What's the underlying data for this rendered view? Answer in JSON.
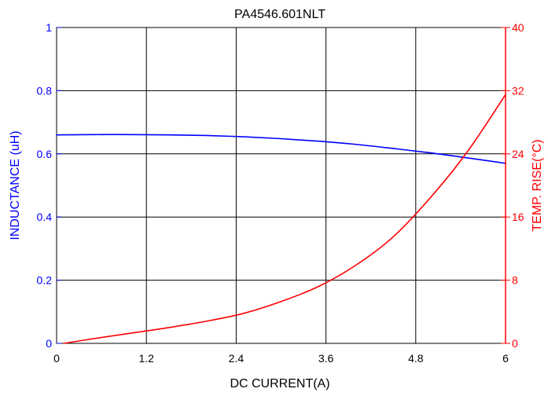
{
  "chart_data": {
    "type": "line",
    "title": "PA4546.601NLT",
    "xlabel": "DC CURRENT(A)",
    "ylabel_left": "INDUCTANCE (uH)",
    "ylabel_right": "TEMP. RISE(°C)",
    "x_ticks": [
      "0",
      "1.2",
      "2.4",
      "3.6",
      "4.8",
      "6"
    ],
    "y_left_ticks": [
      "0",
      "0.2",
      "0.4",
      "0.6",
      "0.8",
      "1"
    ],
    "y_right_ticks": [
      "0",
      "8",
      "16",
      "24",
      "32",
      "40"
    ],
    "xlim": [
      0,
      6
    ],
    "ylim_left": [
      0,
      1
    ],
    "ylim_right": [
      0,
      40
    ],
    "grid": true,
    "colors": {
      "inductance": "#0000ff",
      "temp_rise": "#ff0000",
      "grid": "#000000",
      "left_axis": "#0000ff",
      "right_axis": "#ff0000"
    },
    "series": [
      {
        "axis": "left",
        "color": "#0000ff",
        "x": [
          0,
          0.5,
          1.0,
          1.5,
          2.0,
          2.5,
          3.0,
          3.5,
          4.0,
          4.5,
          5.0,
          5.5,
          6.0
        ],
        "values": [
          0.66,
          0.661,
          0.661,
          0.66,
          0.658,
          0.654,
          0.648,
          0.64,
          0.63,
          0.617,
          0.603,
          0.587,
          0.57
        ]
      },
      {
        "axis": "right",
        "color": "#ff0000",
        "x": [
          0.1,
          0.5,
          1.0,
          1.5,
          2.0,
          2.5,
          3.0,
          3.5,
          4.0,
          4.5,
          5.0,
          5.5,
          6.0
        ],
        "values": [
          0.0,
          0.6,
          1.3,
          2.0,
          2.8,
          3.8,
          5.3,
          7.2,
          9.9,
          13.5,
          18.5,
          24.4,
          31.5
        ]
      }
    ]
  }
}
